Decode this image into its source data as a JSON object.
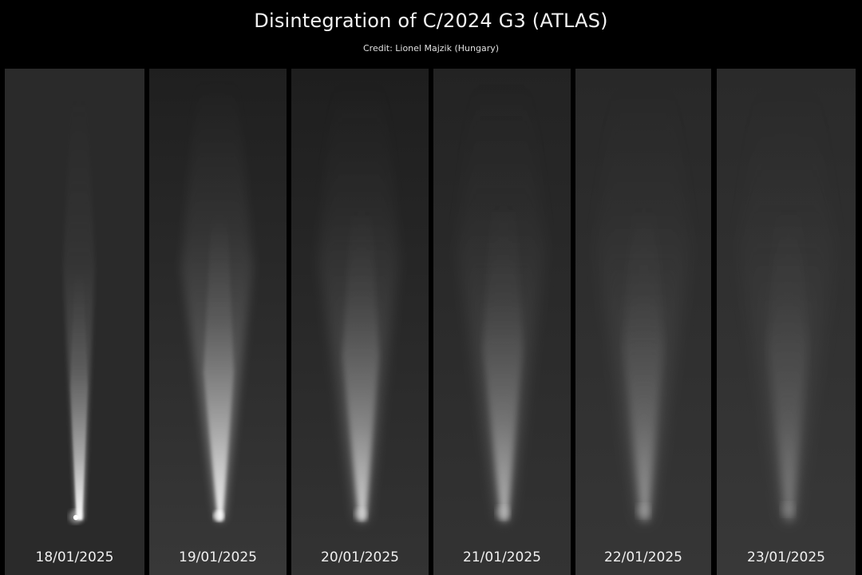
{
  "header": {
    "title": "Disintegration of C/2024 G3 (ATLAS)",
    "credit": "Credit: Lionel Majzik (Hungary)"
  },
  "panels": [
    {
      "date": "18/01/2025"
    },
    {
      "date": "19/01/2025"
    },
    {
      "date": "20/01/2025"
    },
    {
      "date": "21/01/2025"
    },
    {
      "date": "22/01/2025"
    },
    {
      "date": "23/01/2025"
    }
  ],
  "colors": {
    "background": "#000000",
    "panel_sky": "#2b2b2b",
    "comet": "#ffffff"
  }
}
